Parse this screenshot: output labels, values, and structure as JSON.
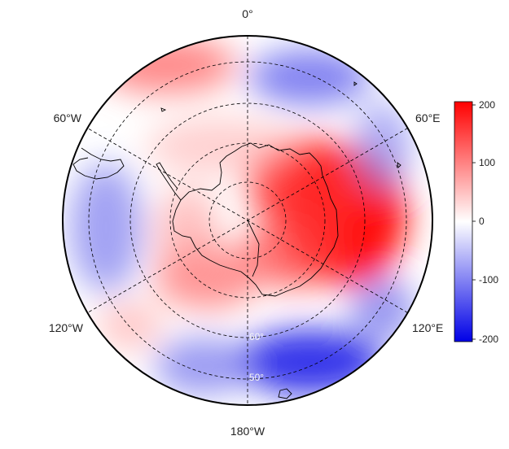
{
  "map": {
    "projection": "south-polar-stereographic",
    "longitude_labels": [
      {
        "text": "0°",
        "lon": 0
      },
      {
        "text": "60°E",
        "lon": 60
      },
      {
        "text": "120°E",
        "lon": 120
      },
      {
        "text": "180°W",
        "lon": 180
      },
      {
        "text": "120°W",
        "lon": -120
      },
      {
        "text": "60°W",
        "lon": -60
      }
    ],
    "latitude_labels": [
      {
        "text": "60°",
        "lat": -60
      },
      {
        "text": "50°",
        "lat": -50
      }
    ],
    "colors": {
      "negative": "#0000e6",
      "zero": "#ffffff",
      "positive": "#ff0000",
      "outline": "#000000",
      "grid": "#000000"
    }
  },
  "colorbar": {
    "min": -200,
    "max": 200,
    "ticks": [
      "200",
      "100",
      "0",
      "-100",
      "-200"
    ]
  }
}
